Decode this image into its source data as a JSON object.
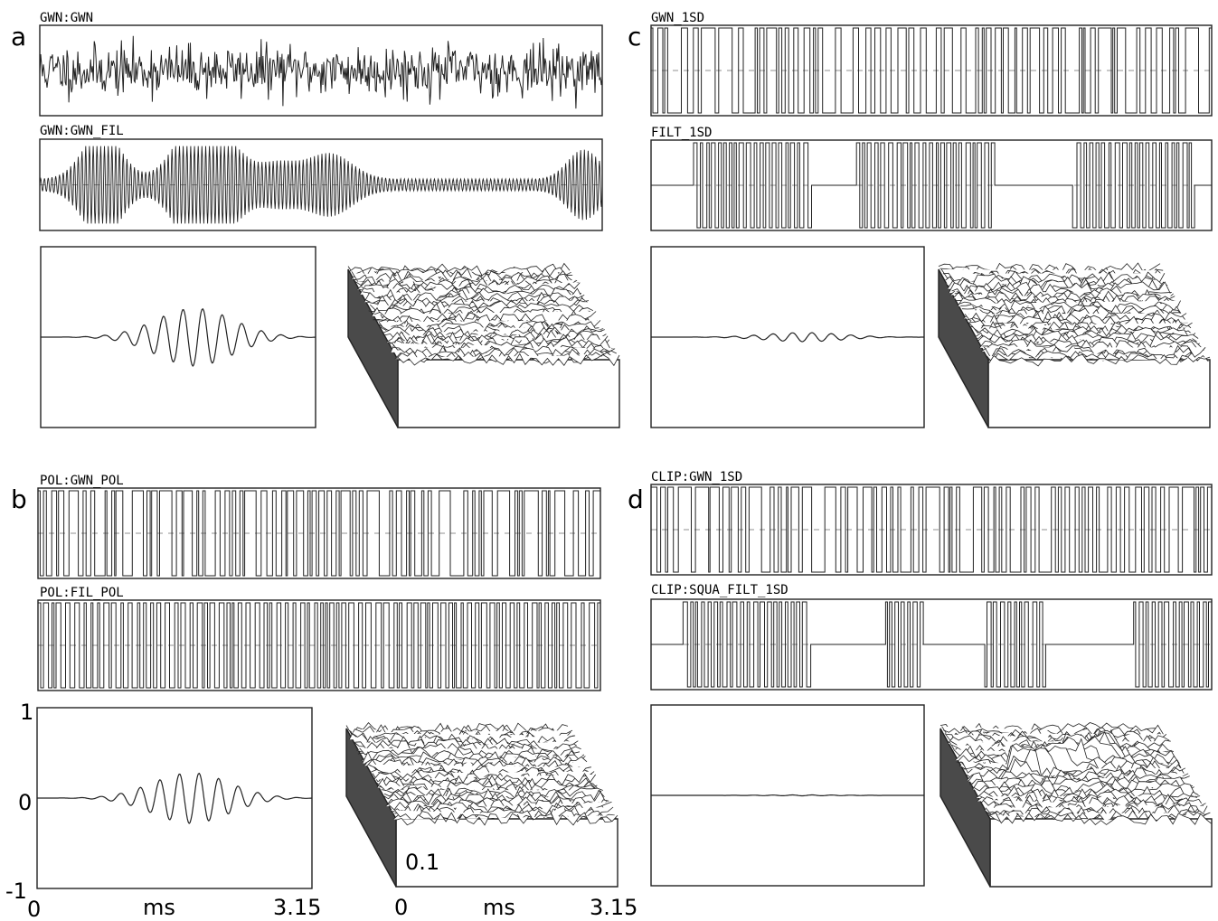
{
  "figure": {
    "panels": [
      {
        "letter": "a",
        "trace_labels": [
          "GWN:GWN",
          "GWN:GWN_FIL"
        ],
        "trace_kinds": [
          "noise",
          "burst"
        ],
        "kernel_amplitude": 0.32
      },
      {
        "letter": "b",
        "trace_labels": [
          "POL:GWN_POL",
          "POL:FIL_POL"
        ],
        "trace_kinds": [
          "binary_random",
          "binary_dense"
        ],
        "kernel_amplitude": 0.28
      },
      {
        "letter": "c",
        "trace_labels": [
          "GWN_1SD",
          "FILT_1SD"
        ],
        "trace_kinds": [
          "binary_random",
          "binary_burst"
        ],
        "kernel_amplitude": 0.05
      },
      {
        "letter": "d",
        "trace_labels": [
          "CLIP:GWN_1SD",
          "CLIP:SQUA_FILT_1SD"
        ],
        "trace_kinds": [
          "binary_random",
          "binary_burst"
        ],
        "kernel_amplitude": 0.005
      }
    ],
    "kernel_axis": {
      "y_top": "1",
      "y_mid": "0",
      "y_bottom": "-1",
      "x_start": "0",
      "x_unit": "ms",
      "x_end": "3.15"
    },
    "surface_axis": {
      "z_label": "0.1",
      "x_start": "0",
      "x_unit": "ms",
      "x_end": "3.15"
    },
    "line_color": "#222222",
    "fill_dark": "#4a4a4a"
  }
}
